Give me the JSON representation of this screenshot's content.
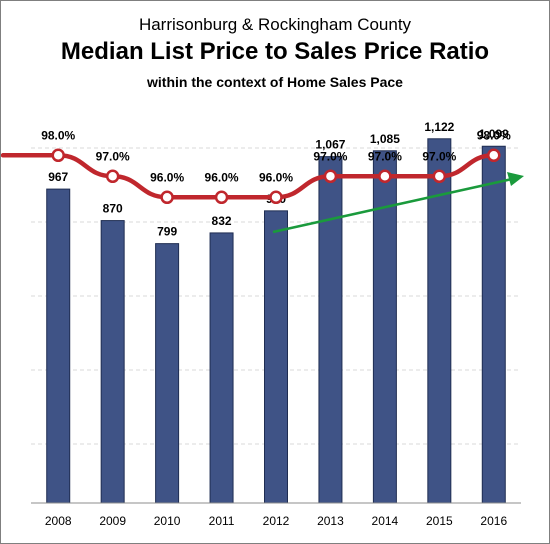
{
  "header": {
    "title_line1": "Harrisonburg & Rockingham County",
    "title_line2": "Median List Price to Sales Price Ratio",
    "subtitle": "within the context of Home Sales Pace"
  },
  "colors": {
    "bars": "#3f5386",
    "bar_edge": "#1f2d52",
    "line": "#c0272d",
    "trend_arrow": "#1a9a3c",
    "grid": "#d9d9d9"
  },
  "chart_data": [
    {
      "type": "bar",
      "categories": [
        "2008",
        "2009",
        "2010",
        "2011",
        "2012",
        "2013",
        "2014",
        "2015",
        "2016"
      ],
      "values": [
        967,
        870,
        799,
        832,
        900,
        1067,
        1085,
        1122,
        1099
      ],
      "value_labels": [
        "967",
        "870",
        "799",
        "832",
        "900",
        "1,067",
        "1,085",
        "1,122",
        "1,099"
      ],
      "ylim": [
        0,
        1300
      ],
      "grid": true
    },
    {
      "type": "line",
      "categories": [
        "2008",
        "2009",
        "2010",
        "2011",
        "2012",
        "2013",
        "2014",
        "2015",
        "2016"
      ],
      "values": [
        98,
        97,
        96,
        96,
        96,
        97,
        97,
        97,
        98
      ],
      "value_labels": [
        "98.0%",
        "97.0%",
        "96.0%",
        "96.0%",
        "96.0%",
        "97.0%",
        "97.0%",
        "97.0%",
        "98.0%"
      ],
      "ylim": [
        95.3,
        98.3
      ]
    }
  ]
}
